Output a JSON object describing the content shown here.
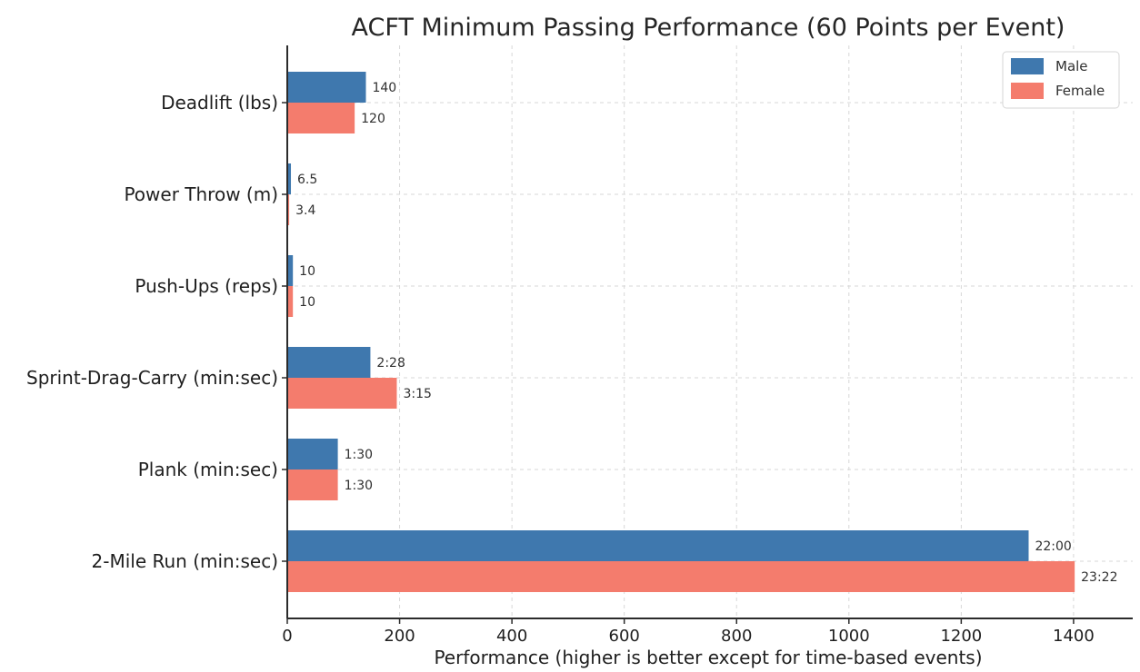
{
  "chart_data": {
    "type": "bar",
    "orientation": "horizontal",
    "title": "ACFT Minimum Passing Performance (60 Points per Event)",
    "xlabel": "Performance (higher is better except for time-based events)",
    "ylabel": "",
    "xlim": [
      0,
      1500
    ],
    "xticks": [
      0,
      200,
      400,
      600,
      800,
      1000,
      1200,
      1400
    ],
    "grid": true,
    "legend_position": "top-right",
    "categories": [
      "Deadlift (lbs)",
      "Power Throw (m)",
      "Push-Ups (reps)",
      "Sprint-Drag-Carry (min:sec)",
      "Plank (min:sec)",
      "2-Mile Run (min:sec)"
    ],
    "series": [
      {
        "name": "Male",
        "color": "#3f78ae",
        "values": [
          140,
          6.5,
          10,
          148,
          90,
          1320
        ],
        "labels": [
          "140",
          "6.5",
          "10",
          "2:28",
          "1:30",
          "22:00"
        ]
      },
      {
        "name": "Female",
        "color": "#f47c6d",
        "values": [
          120,
          3.4,
          10,
          195,
          90,
          1402
        ],
        "labels": [
          "120",
          "3.4",
          "10",
          "3:15",
          "1:30",
          "23:22"
        ]
      }
    ]
  }
}
